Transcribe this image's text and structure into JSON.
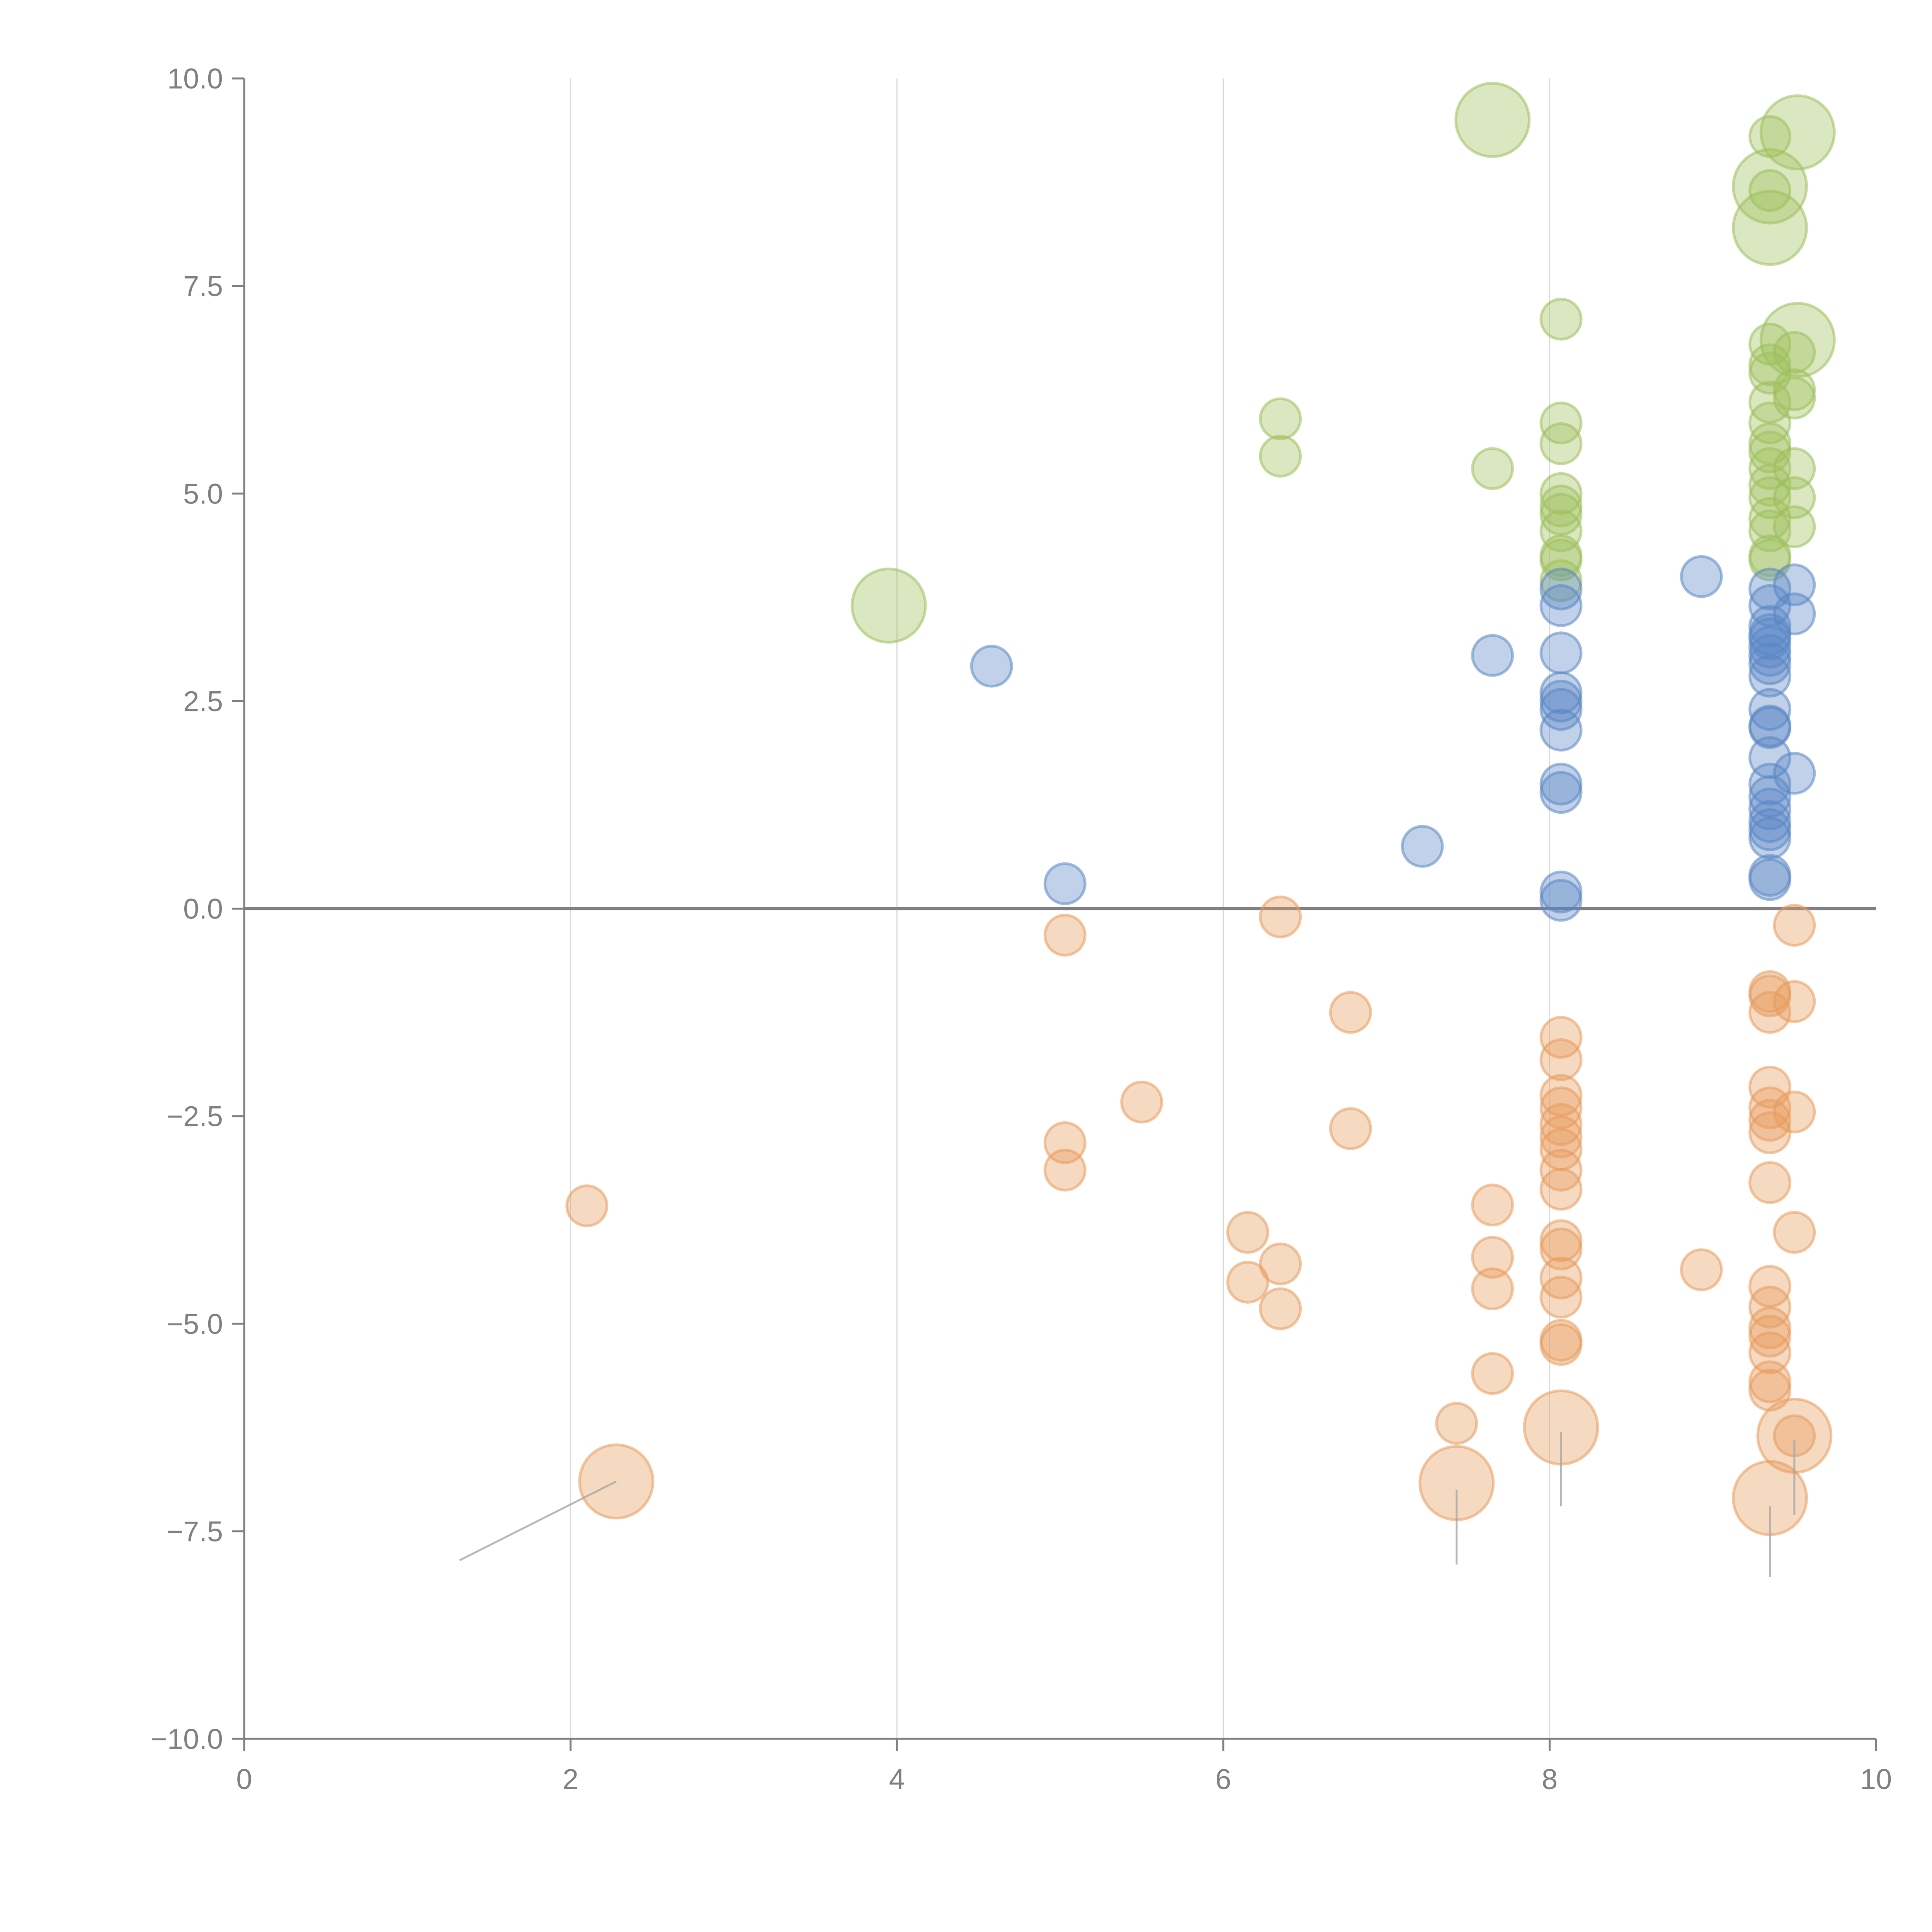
{
  "chart_data": {
    "type": "scatter",
    "title": "",
    "xlabel": "",
    "ylabel": "",
    "xlim": [
      0,
      10
    ],
    "ylim": [
      -10,
      10
    ],
    "x_ticks": [
      "0",
      "2",
      "4",
      "6",
      "8",
      "10"
    ],
    "x_tick_values": [
      0,
      2,
      4,
      6,
      8,
      10
    ],
    "y_ticks": [
      "10.0",
      "7.5",
      "5.0",
      "2.5",
      "0.0",
      "−2.5",
      "−5.0",
      "−7.5",
      "−10.0"
    ],
    "y_tick_values": [
      10,
      7.5,
      5,
      2.5,
      0,
      -2.5,
      -5,
      -7.5,
      -10
    ],
    "grid": "vertical",
    "reference_line_y": 0,
    "legend": "none",
    "series": [
      {
        "name": "green",
        "color": "#9dc05b",
        "points": [
          {
            "x": 3.95,
            "y": 3.65,
            "size": 3
          },
          {
            "x": 6.35,
            "y": 5.9,
            "size": 1
          },
          {
            "x": 6.35,
            "y": 5.45,
            "size": 1
          },
          {
            "x": 7.65,
            "y": 5.3,
            "size": 1
          },
          {
            "x": 7.65,
            "y": 9.5,
            "size": 3
          },
          {
            "x": 8.07,
            "y": 7.1,
            "size": 1
          },
          {
            "x": 8.07,
            "y": 5.85,
            "size": 1
          },
          {
            "x": 8.07,
            "y": 5.6,
            "size": 1
          },
          {
            "x": 8.07,
            "y": 5.0,
            "size": 1
          },
          {
            "x": 8.07,
            "y": 4.85,
            "size": 1
          },
          {
            "x": 8.07,
            "y": 4.75,
            "size": 1
          },
          {
            "x": 8.07,
            "y": 4.55,
            "size": 1
          },
          {
            "x": 8.07,
            "y": 4.25,
            "size": 1
          },
          {
            "x": 8.07,
            "y": 4.2,
            "size": 1
          },
          {
            "x": 8.07,
            "y": 3.95,
            "size": 1
          },
          {
            "x": 9.35,
            "y": 9.3,
            "size": 1
          },
          {
            "x": 9.35,
            "y": 8.65,
            "size": 1
          },
          {
            "x": 9.35,
            "y": 8.7,
            "size": 3
          },
          {
            "x": 9.35,
            "y": 8.2,
            "size": 3
          },
          {
            "x": 9.52,
            "y": 9.35,
            "size": 3
          },
          {
            "x": 9.52,
            "y": 6.85,
            "size": 3
          },
          {
            "x": 9.35,
            "y": 6.8,
            "size": 1
          },
          {
            "x": 9.35,
            "y": 6.55,
            "size": 1
          },
          {
            "x": 9.35,
            "y": 6.45,
            "size": 1
          },
          {
            "x": 9.35,
            "y": 6.1,
            "size": 1
          },
          {
            "x": 9.35,
            "y": 5.85,
            "size": 1
          },
          {
            "x": 9.35,
            "y": 5.6,
            "size": 1
          },
          {
            "x": 9.35,
            "y": 5.5,
            "size": 1
          },
          {
            "x": 9.35,
            "y": 5.3,
            "size": 1
          },
          {
            "x": 9.35,
            "y": 5.1,
            "size": 1
          },
          {
            "x": 9.35,
            "y": 4.95,
            "size": 1
          },
          {
            "x": 9.35,
            "y": 4.7,
            "size": 1
          },
          {
            "x": 9.35,
            "y": 4.55,
            "size": 1
          },
          {
            "x": 9.35,
            "y": 4.25,
            "size": 1
          },
          {
            "x": 9.35,
            "y": 4.2,
            "size": 1
          },
          {
            "x": 9.5,
            "y": 6.7,
            "size": 1
          },
          {
            "x": 9.5,
            "y": 6.25,
            "size": 1
          },
          {
            "x": 9.5,
            "y": 6.15,
            "size": 1
          },
          {
            "x": 9.5,
            "y": 5.3,
            "size": 1
          },
          {
            "x": 9.5,
            "y": 4.95,
            "size": 1
          },
          {
            "x": 9.5,
            "y": 4.6,
            "size": 1
          }
        ]
      },
      {
        "name": "blue",
        "color": "#5a87c5",
        "points": [
          {
            "x": 4.58,
            "y": 2.92,
            "size": 1
          },
          {
            "x": 5.03,
            "y": 0.3,
            "size": 1
          },
          {
            "x": 7.22,
            "y": 0.75,
            "size": 1
          },
          {
            "x": 7.65,
            "y": 3.05,
            "size": 1
          },
          {
            "x": 8.07,
            "y": 3.85,
            "size": 1
          },
          {
            "x": 8.07,
            "y": 3.65,
            "size": 1
          },
          {
            "x": 8.07,
            "y": 3.08,
            "size": 1
          },
          {
            "x": 8.07,
            "y": 2.6,
            "size": 1
          },
          {
            "x": 8.07,
            "y": 2.5,
            "size": 1
          },
          {
            "x": 8.07,
            "y": 2.4,
            "size": 1
          },
          {
            "x": 8.07,
            "y": 2.15,
            "size": 1
          },
          {
            "x": 8.07,
            "y": 1.5,
            "size": 1
          },
          {
            "x": 8.07,
            "y": 1.4,
            "size": 1
          },
          {
            "x": 8.07,
            "y": 0.2,
            "size": 1
          },
          {
            "x": 8.07,
            "y": 0.1,
            "size": 1
          },
          {
            "x": 8.93,
            "y": 4.0,
            "size": 1
          },
          {
            "x": 9.35,
            "y": 3.85,
            "size": 1
          },
          {
            "x": 9.35,
            "y": 3.65,
            "size": 1
          },
          {
            "x": 9.35,
            "y": 3.4,
            "size": 1
          },
          {
            "x": 9.35,
            "y": 3.3,
            "size": 1
          },
          {
            "x": 9.35,
            "y": 3.25,
            "size": 1
          },
          {
            "x": 9.35,
            "y": 3.15,
            "size": 1
          },
          {
            "x": 9.35,
            "y": 3.05,
            "size": 1
          },
          {
            "x": 9.35,
            "y": 2.95,
            "size": 1
          },
          {
            "x": 9.35,
            "y": 2.8,
            "size": 1
          },
          {
            "x": 9.35,
            "y": 2.4,
            "size": 1
          },
          {
            "x": 9.35,
            "y": 2.2,
            "size": 1
          },
          {
            "x": 9.35,
            "y": 2.18,
            "size": 1
          },
          {
            "x": 9.35,
            "y": 1.82,
            "size": 1
          },
          {
            "x": 9.35,
            "y": 1.5,
            "size": 1
          },
          {
            "x": 9.35,
            "y": 1.35,
            "size": 1
          },
          {
            "x": 9.35,
            "y": 1.2,
            "size": 1
          },
          {
            "x": 9.35,
            "y": 1.05,
            "size": 1
          },
          {
            "x": 9.35,
            "y": 0.95,
            "size": 1
          },
          {
            "x": 9.35,
            "y": 0.85,
            "size": 1
          },
          {
            "x": 9.35,
            "y": 0.4,
            "size": 1
          },
          {
            "x": 9.35,
            "y": 0.35,
            "size": 1
          },
          {
            "x": 9.5,
            "y": 3.9,
            "size": 1
          },
          {
            "x": 9.5,
            "y": 3.55,
            "size": 1
          },
          {
            "x": 9.5,
            "y": 1.63,
            "size": 1
          }
        ]
      },
      {
        "name": "orange",
        "color": "#e89a5c",
        "points": [
          {
            "x": 2.1,
            "y": -3.58,
            "size": 1
          },
          {
            "x": 2.28,
            "y": -6.9,
            "size": 3
          },
          {
            "x": 5.03,
            "y": -0.32,
            "size": 1
          },
          {
            "x": 5.03,
            "y": -2.82,
            "size": 1
          },
          {
            "x": 5.03,
            "y": -3.15,
            "size": 1
          },
          {
            "x": 5.5,
            "y": -2.33,
            "size": 1
          },
          {
            "x": 6.15,
            "y": -3.9,
            "size": 1
          },
          {
            "x": 6.15,
            "y": -4.5,
            "size": 1
          },
          {
            "x": 6.35,
            "y": -0.1,
            "size": 1
          },
          {
            "x": 6.35,
            "y": -4.28,
            "size": 1
          },
          {
            "x": 6.35,
            "y": -4.82,
            "size": 1
          },
          {
            "x": 6.78,
            "y": -1.25,
            "size": 1
          },
          {
            "x": 6.78,
            "y": -2.65,
            "size": 1
          },
          {
            "x": 7.43,
            "y": -6.2,
            "size": 1
          },
          {
            "x": 7.43,
            "y": -6.92,
            "size": 3
          },
          {
            "x": 7.65,
            "y": -3.57,
            "size": 1
          },
          {
            "x": 7.65,
            "y": -4.2,
            "size": 1
          },
          {
            "x": 7.65,
            "y": -4.58,
            "size": 1
          },
          {
            "x": 7.65,
            "y": -5.6,
            "size": 1
          },
          {
            "x": 8.07,
            "y": -1.55,
            "size": 1
          },
          {
            "x": 8.07,
            "y": -1.82,
            "size": 1
          },
          {
            "x": 8.07,
            "y": -2.25,
            "size": 1
          },
          {
            "x": 8.07,
            "y": -2.4,
            "size": 1
          },
          {
            "x": 8.07,
            "y": -2.6,
            "size": 1
          },
          {
            "x": 8.07,
            "y": -2.75,
            "size": 1
          },
          {
            "x": 8.07,
            "y": -2.9,
            "size": 1
          },
          {
            "x": 8.07,
            "y": -3.15,
            "size": 1
          },
          {
            "x": 8.07,
            "y": -3.38,
            "size": 1
          },
          {
            "x": 8.07,
            "y": -4.0,
            "size": 1
          },
          {
            "x": 8.07,
            "y": -4.1,
            "size": 1
          },
          {
            "x": 8.07,
            "y": -4.45,
            "size": 1
          },
          {
            "x": 8.07,
            "y": -4.68,
            "size": 1
          },
          {
            "x": 8.07,
            "y": -5.2,
            "size": 1
          },
          {
            "x": 8.07,
            "y": -5.25,
            "size": 1
          },
          {
            "x": 8.07,
            "y": -6.25,
            "size": 3
          },
          {
            "x": 8.93,
            "y": -4.35,
            "size": 1
          },
          {
            "x": 9.35,
            "y": -1.0,
            "size": 1
          },
          {
            "x": 9.35,
            "y": -1.05,
            "size": 1
          },
          {
            "x": 9.35,
            "y": -1.25,
            "size": 1
          },
          {
            "x": 9.35,
            "y": -2.15,
            "size": 1
          },
          {
            "x": 9.35,
            "y": -2.4,
            "size": 1
          },
          {
            "x": 9.35,
            "y": -2.55,
            "size": 1
          },
          {
            "x": 9.35,
            "y": -2.7,
            "size": 1
          },
          {
            "x": 9.35,
            "y": -3.3,
            "size": 1
          },
          {
            "x": 9.35,
            "y": -4.55,
            "size": 1
          },
          {
            "x": 9.35,
            "y": -4.8,
            "size": 1
          },
          {
            "x": 9.35,
            "y": -5.05,
            "size": 1
          },
          {
            "x": 9.35,
            "y": -5.15,
            "size": 1
          },
          {
            "x": 9.35,
            "y": -5.35,
            "size": 1
          },
          {
            "x": 9.35,
            "y": -5.7,
            "size": 1
          },
          {
            "x": 9.35,
            "y": -5.8,
            "size": 1
          },
          {
            "x": 9.35,
            "y": -7.1,
            "size": 3
          },
          {
            "x": 9.5,
            "y": -0.2,
            "size": 1
          },
          {
            "x": 9.5,
            "y": -1.12,
            "size": 1
          },
          {
            "x": 9.5,
            "y": -2.45,
            "size": 1
          },
          {
            "x": 9.5,
            "y": -3.9,
            "size": 1
          },
          {
            "x": 9.5,
            "y": -6.35,
            "size": 1
          },
          {
            "x": 9.5,
            "y": -6.35,
            "size": 3
          }
        ]
      }
    ],
    "annotations": [
      {
        "series": "orange",
        "from": {
          "x": 2.28,
          "y": -6.9
        },
        "to": {
          "x": 1.32,
          "y": -7.85
        },
        "text": ""
      },
      {
        "series": "orange",
        "from": {
          "x": 7.43,
          "y": -7.0
        },
        "to": {
          "x": 7.43,
          "y": -7.9
        },
        "text": ""
      },
      {
        "series": "orange",
        "from": {
          "x": 8.07,
          "y": -6.3
        },
        "to": {
          "x": 8.07,
          "y": -7.2
        },
        "text": ""
      },
      {
        "series": "orange",
        "from": {
          "x": 9.35,
          "y": -7.2
        },
        "to": {
          "x": 9.35,
          "y": -8.05
        },
        "text": ""
      },
      {
        "series": "orange",
        "from": {
          "x": 9.5,
          "y": -6.4
        },
        "to": {
          "x": 9.5,
          "y": -7.3
        },
        "text": ""
      }
    ]
  }
}
